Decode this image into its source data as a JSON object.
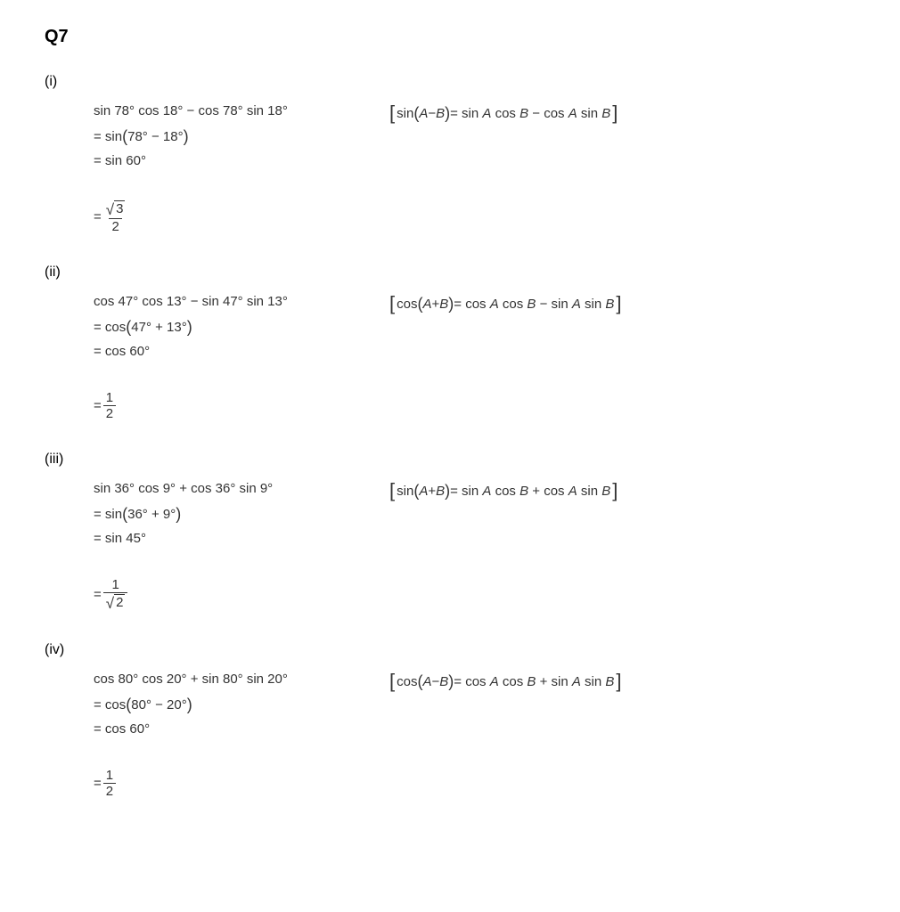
{
  "title": "Q7",
  "colors": {
    "background": "#ffffff",
    "text": "#000000",
    "math_text": "#333333",
    "rule": "#333333"
  },
  "typography": {
    "title_fontsize_pt": 15,
    "title_weight": "bold",
    "body_fontsize_pt": 11,
    "math_family": "Verdana, Arial, sans-serif"
  },
  "parts": [
    {
      "label": "(i)",
      "expr": "sin 78° cos 18° − cos 78° sin 18°",
      "identity_open": "sin",
      "identity_argA": "A",
      "identity_op": " − ",
      "identity_argB": "B",
      "identity_rhs": " = sin A cos B − cos A sin B",
      "step1_prefix": "= sin",
      "step1_inside": "78° − 18°",
      "step2": "= sin 60°",
      "result_prefix": "= ",
      "result_type": "sqrt_over",
      "result_num_sqrt": "3",
      "result_den": "2"
    },
    {
      "label": "(ii)",
      "expr": "cos 47° cos 13° − sin 47° sin 13°",
      "identity_open": "cos",
      "identity_argA": "A",
      "identity_op": " + ",
      "identity_argB": "B",
      "identity_rhs": " = cos A cos B − sin A sin B",
      "step1_prefix": "= cos",
      "step1_inside": "47° + 13°",
      "step2": "= cos 60°",
      "result_prefix": "= ",
      "result_type": "simple_frac",
      "result_num": "1",
      "result_den": "2"
    },
    {
      "label": "(iii)",
      "expr": "sin 36° cos 9° + cos 36° sin 9°",
      "identity_open": "sin",
      "identity_argA": "A",
      "identity_op": " + ",
      "identity_argB": "B",
      "identity_rhs": " = sin A cos B + cos A sin B",
      "step1_prefix": "= sin",
      "step1_inside": "36° + 9°",
      "step2": "= sin 45°",
      "result_prefix": "= ",
      "result_type": "over_sqrt",
      "result_num": "1",
      "result_den_sqrt": "2"
    },
    {
      "label": "(iv)",
      "expr": "cos 80° cos 20° + sin 80° sin 20°",
      "identity_open": "cos",
      "identity_argA": "A",
      "identity_op": " − ",
      "identity_argB": "B",
      "identity_rhs": " = cos A cos B + sin A sin B",
      "step1_prefix": "= cos",
      "step1_inside": "80° − 20°",
      "step2": "= cos 60°",
      "result_prefix": "= ",
      "result_type": "simple_frac",
      "result_num": "1",
      "result_den": "2"
    }
  ]
}
